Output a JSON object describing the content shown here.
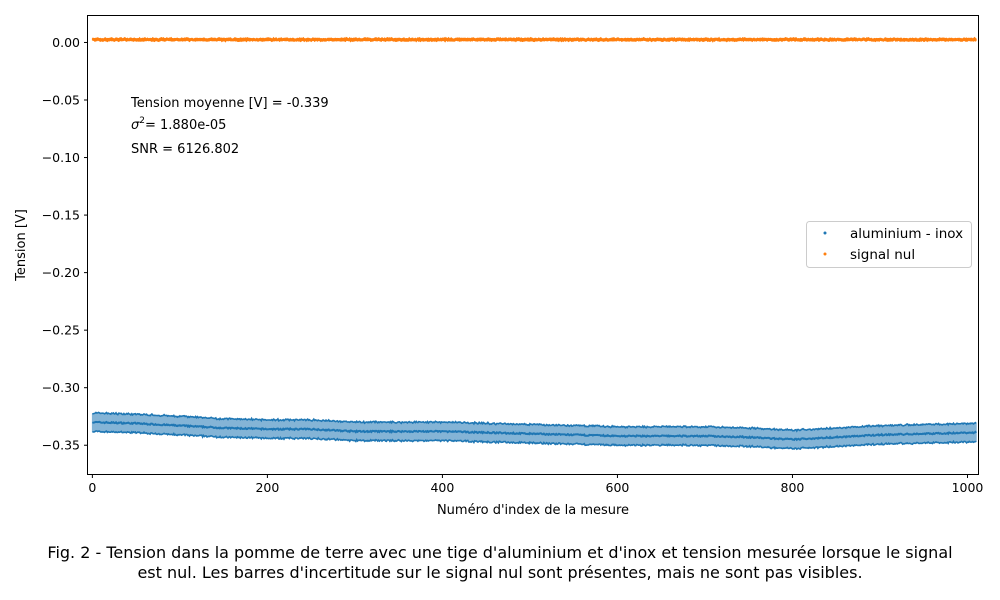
{
  "chart_data": {
    "type": "scatter",
    "xlabel": "Numéro d'index de la mesure",
    "ylabel": "Tension [V]",
    "xlim": [
      -5,
      1012
    ],
    "ylim": [
      -0.375,
      0.023
    ],
    "xticks": [
      0,
      200,
      400,
      600,
      800,
      1000
    ],
    "yticks": [
      0.0,
      -0.05,
      -0.1,
      -0.15,
      -0.2,
      -0.25,
      -0.3,
      -0.35
    ],
    "ytick_labels": [
      "0.00",
      "−0.05",
      "−0.10",
      "−0.15",
      "−0.20",
      "−0.25",
      "−0.30",
      "−0.35"
    ],
    "grid": false,
    "legend_position": "center-right",
    "series": [
      {
        "name": "aluminium - inox",
        "color": "#1f77b4",
        "marker": "point",
        "error_bars": true,
        "x": [
          0,
          50,
          100,
          150,
          200,
          250,
          300,
          350,
          400,
          450,
          500,
          550,
          600,
          650,
          700,
          750,
          800,
          850,
          900,
          950,
          1010
        ],
        "y": [
          -0.33,
          -0.331,
          -0.333,
          -0.335,
          -0.336,
          -0.336,
          -0.338,
          -0.338,
          -0.338,
          -0.339,
          -0.34,
          -0.341,
          -0.342,
          -0.342,
          -0.342,
          -0.343,
          -0.345,
          -0.343,
          -0.341,
          -0.34,
          -0.339
        ],
        "error": [
          0.008,
          0.008,
          0.008,
          0.008,
          0.008,
          0.008,
          0.008,
          0.008,
          0.008,
          0.008,
          0.008,
          0.008,
          0.008,
          0.008,
          0.008,
          0.008,
          0.008,
          0.008,
          0.008,
          0.008,
          0.008
        ]
      },
      {
        "name": "signal nul",
        "color": "#ff7f0e",
        "marker": "point",
        "error_bars": true,
        "x": [
          0,
          100,
          200,
          300,
          400,
          500,
          600,
          700,
          800,
          900,
          1010
        ],
        "y": [
          0.0025,
          0.0025,
          0.0025,
          0.0025,
          0.0025,
          0.0025,
          0.0025,
          0.0025,
          0.0025,
          0.0025,
          0.0025
        ],
        "error": [
          0.0008,
          0.0008,
          0.0008,
          0.0008,
          0.0008,
          0.0008,
          0.0008,
          0.0008,
          0.0008,
          0.0008,
          0.0008
        ]
      }
    ],
    "annotations": {
      "mean": "Tension moyenne [V] = -0.339",
      "variance_symbol": "σ",
      "variance_exponent": "2",
      "variance_value": "= 1.880e-05",
      "snr": "SNR = 6126.802"
    }
  },
  "caption": "Fig. 2 - Tension dans la pomme de terre avec une tige d'aluminium et d'inox et tension mesurée lorsque le signal est nul. Les barres d'incertitude sur le signal nul sont présentes, mais ne sont pas visibles."
}
